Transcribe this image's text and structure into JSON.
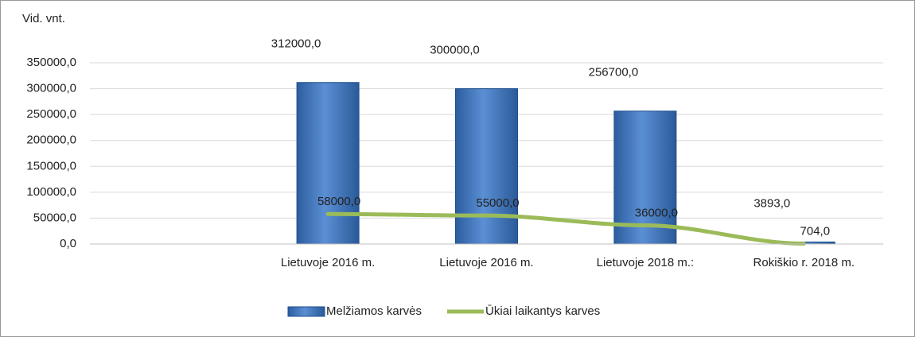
{
  "chart_data": {
    "type": "bar_line",
    "y_label": "Vid. vnt.",
    "categories": [
      null,
      "Lietuvoje 2016 m.",
      "Lietuvoje 2016 m.",
      "Lietuvoje 2018 m.:",
      "Rokiškio r. 2018 m."
    ],
    "series": [
      {
        "name": "Melžiamos karvės",
        "type": "bar",
        "color": "#4f81bd",
        "values": [
          null,
          312000,
          300000,
          256700,
          3893
        ],
        "value_labels": [
          null,
          "312000,0",
          "300000,0",
          "256700,0",
          "3893,0"
        ]
      },
      {
        "name": "Ūkiai laikantys karves",
        "type": "line",
        "color": "#9bbb59",
        "values": [
          null,
          58000,
          55000,
          36000,
          704
        ],
        "value_labels": [
          null,
          "58000,0",
          "55000,0",
          "36000,0",
          "704,0"
        ]
      }
    ],
    "ylim": [
      0,
      350000
    ],
    "yticks": [
      {
        "value": 0,
        "label": "0,0"
      },
      {
        "value": 50000,
        "label": "50000,0"
      },
      {
        "value": 100000,
        "label": "100000,0"
      },
      {
        "value": 150000,
        "label": "150000,0"
      },
      {
        "value": 200000,
        "label": "200000,0"
      },
      {
        "value": 250000,
        "label": "250000,0"
      },
      {
        "value": 300000,
        "label": "300000,0"
      },
      {
        "value": 350000,
        "label": "350000,0"
      }
    ],
    "grid": true,
    "legend": "bottom"
  }
}
